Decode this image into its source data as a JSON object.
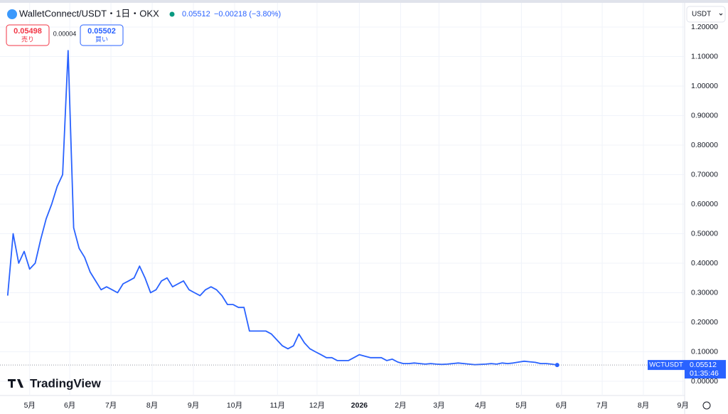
{
  "chart_data": {
    "type": "line",
    "title": "WalletConnect/USDT・1日・OKX",
    "series": [
      {
        "name": "WCTUSDT",
        "color": "#2962ff",
        "values": [
          0.29,
          0.5,
          0.4,
          0.44,
          0.38,
          0.4,
          0.48,
          0.55,
          0.6,
          0.66,
          0.7,
          1.12,
          0.52,
          0.45,
          0.42,
          0.37,
          0.34,
          0.31,
          0.32,
          0.31,
          0.3,
          0.33,
          0.34,
          0.35,
          0.39,
          0.35,
          0.3,
          0.31,
          0.34,
          0.35,
          0.32,
          0.33,
          0.34,
          0.31,
          0.3,
          0.29,
          0.31,
          0.32,
          0.31,
          0.29,
          0.26,
          0.26,
          0.25,
          0.25,
          0.17,
          0.17,
          0.17,
          0.17,
          0.16,
          0.14,
          0.12,
          0.11,
          0.12,
          0.16,
          0.13,
          0.11,
          0.1,
          0.09,
          0.08,
          0.08,
          0.07,
          0.07,
          0.07,
          0.08,
          0.09,
          0.085,
          0.08,
          0.08,
          0.08,
          0.07,
          0.075,
          0.065,
          0.06,
          0.06,
          0.062,
          0.06,
          0.058,
          0.06,
          0.058,
          0.057,
          0.058,
          0.06,
          0.062,
          0.06,
          0.058,
          0.056,
          0.057,
          0.058,
          0.06,
          0.058,
          0.062,
          0.06,
          0.062,
          0.065,
          0.068,
          0.066,
          0.064,
          0.06,
          0.06,
          0.058,
          0.05512
        ]
      }
    ],
    "xlim": [
      -1.4,
      123.2
    ],
    "xticks": [
      {
        "value": 4.0,
        "label": "5月"
      },
      {
        "value": 11.3,
        "label": "6月"
      },
      {
        "value": 18.8,
        "label": "7月"
      },
      {
        "value": 26.3,
        "label": "8月"
      },
      {
        "value": 33.8,
        "label": "9月"
      },
      {
        "value": 41.3,
        "label": "10月"
      },
      {
        "value": 49.1,
        "label": "11月"
      },
      {
        "value": 56.3,
        "label": "12月"
      },
      {
        "value": 64.0,
        "label": "2026"
      },
      {
        "value": 71.5,
        "label": "2月"
      },
      {
        "value": 78.5,
        "label": "3月"
      },
      {
        "value": 86.1,
        "label": "4月"
      },
      {
        "value": 93.5,
        "label": "5月"
      },
      {
        "value": 100.8,
        "label": "6月"
      },
      {
        "value": 108.2,
        "label": "7月"
      },
      {
        "value": 115.7,
        "label": "8月"
      },
      {
        "value": 122.9,
        "label": "9月"
      }
    ],
    "ylim": [
      -0.0386,
      1.2675
    ],
    "yticks": [
      {
        "value": 0,
        "label": "0.00000"
      },
      {
        "value": 0.1,
        "label": "0.10000"
      },
      {
        "value": 0.2,
        "label": "0.20000"
      },
      {
        "value": 0.3,
        "label": "0.30000"
      },
      {
        "value": 0.4,
        "label": "0.40000"
      },
      {
        "value": 0.5,
        "label": "0.50000"
      },
      {
        "value": 0.6,
        "label": "0.60000"
      },
      {
        "value": 0.7,
        "label": "0.70000"
      },
      {
        "value": 0.8,
        "label": "0.80000"
      },
      {
        "value": 0.9,
        "label": "0.90000"
      },
      {
        "value": 1.0,
        "label": "1.00000"
      },
      {
        "value": 1.1,
        "label": "1.10000"
      },
      {
        "value": 1.2,
        "label": "1.20000"
      }
    ],
    "grid": true
  },
  "ui": {
    "price": "0.05512",
    "change": "−0.00218 (−3.80%)",
    "sell_price": "0.05498",
    "sell_label": "売り",
    "spread": "0.00004",
    "buy_price": "0.05502",
    "buy_label": "買い",
    "currency": "USDT",
    "tag_symbol": "WCTUSDT",
    "tag_price": "0.05512",
    "tag_countdown": "01:35:46",
    "logo": "TradingView"
  }
}
